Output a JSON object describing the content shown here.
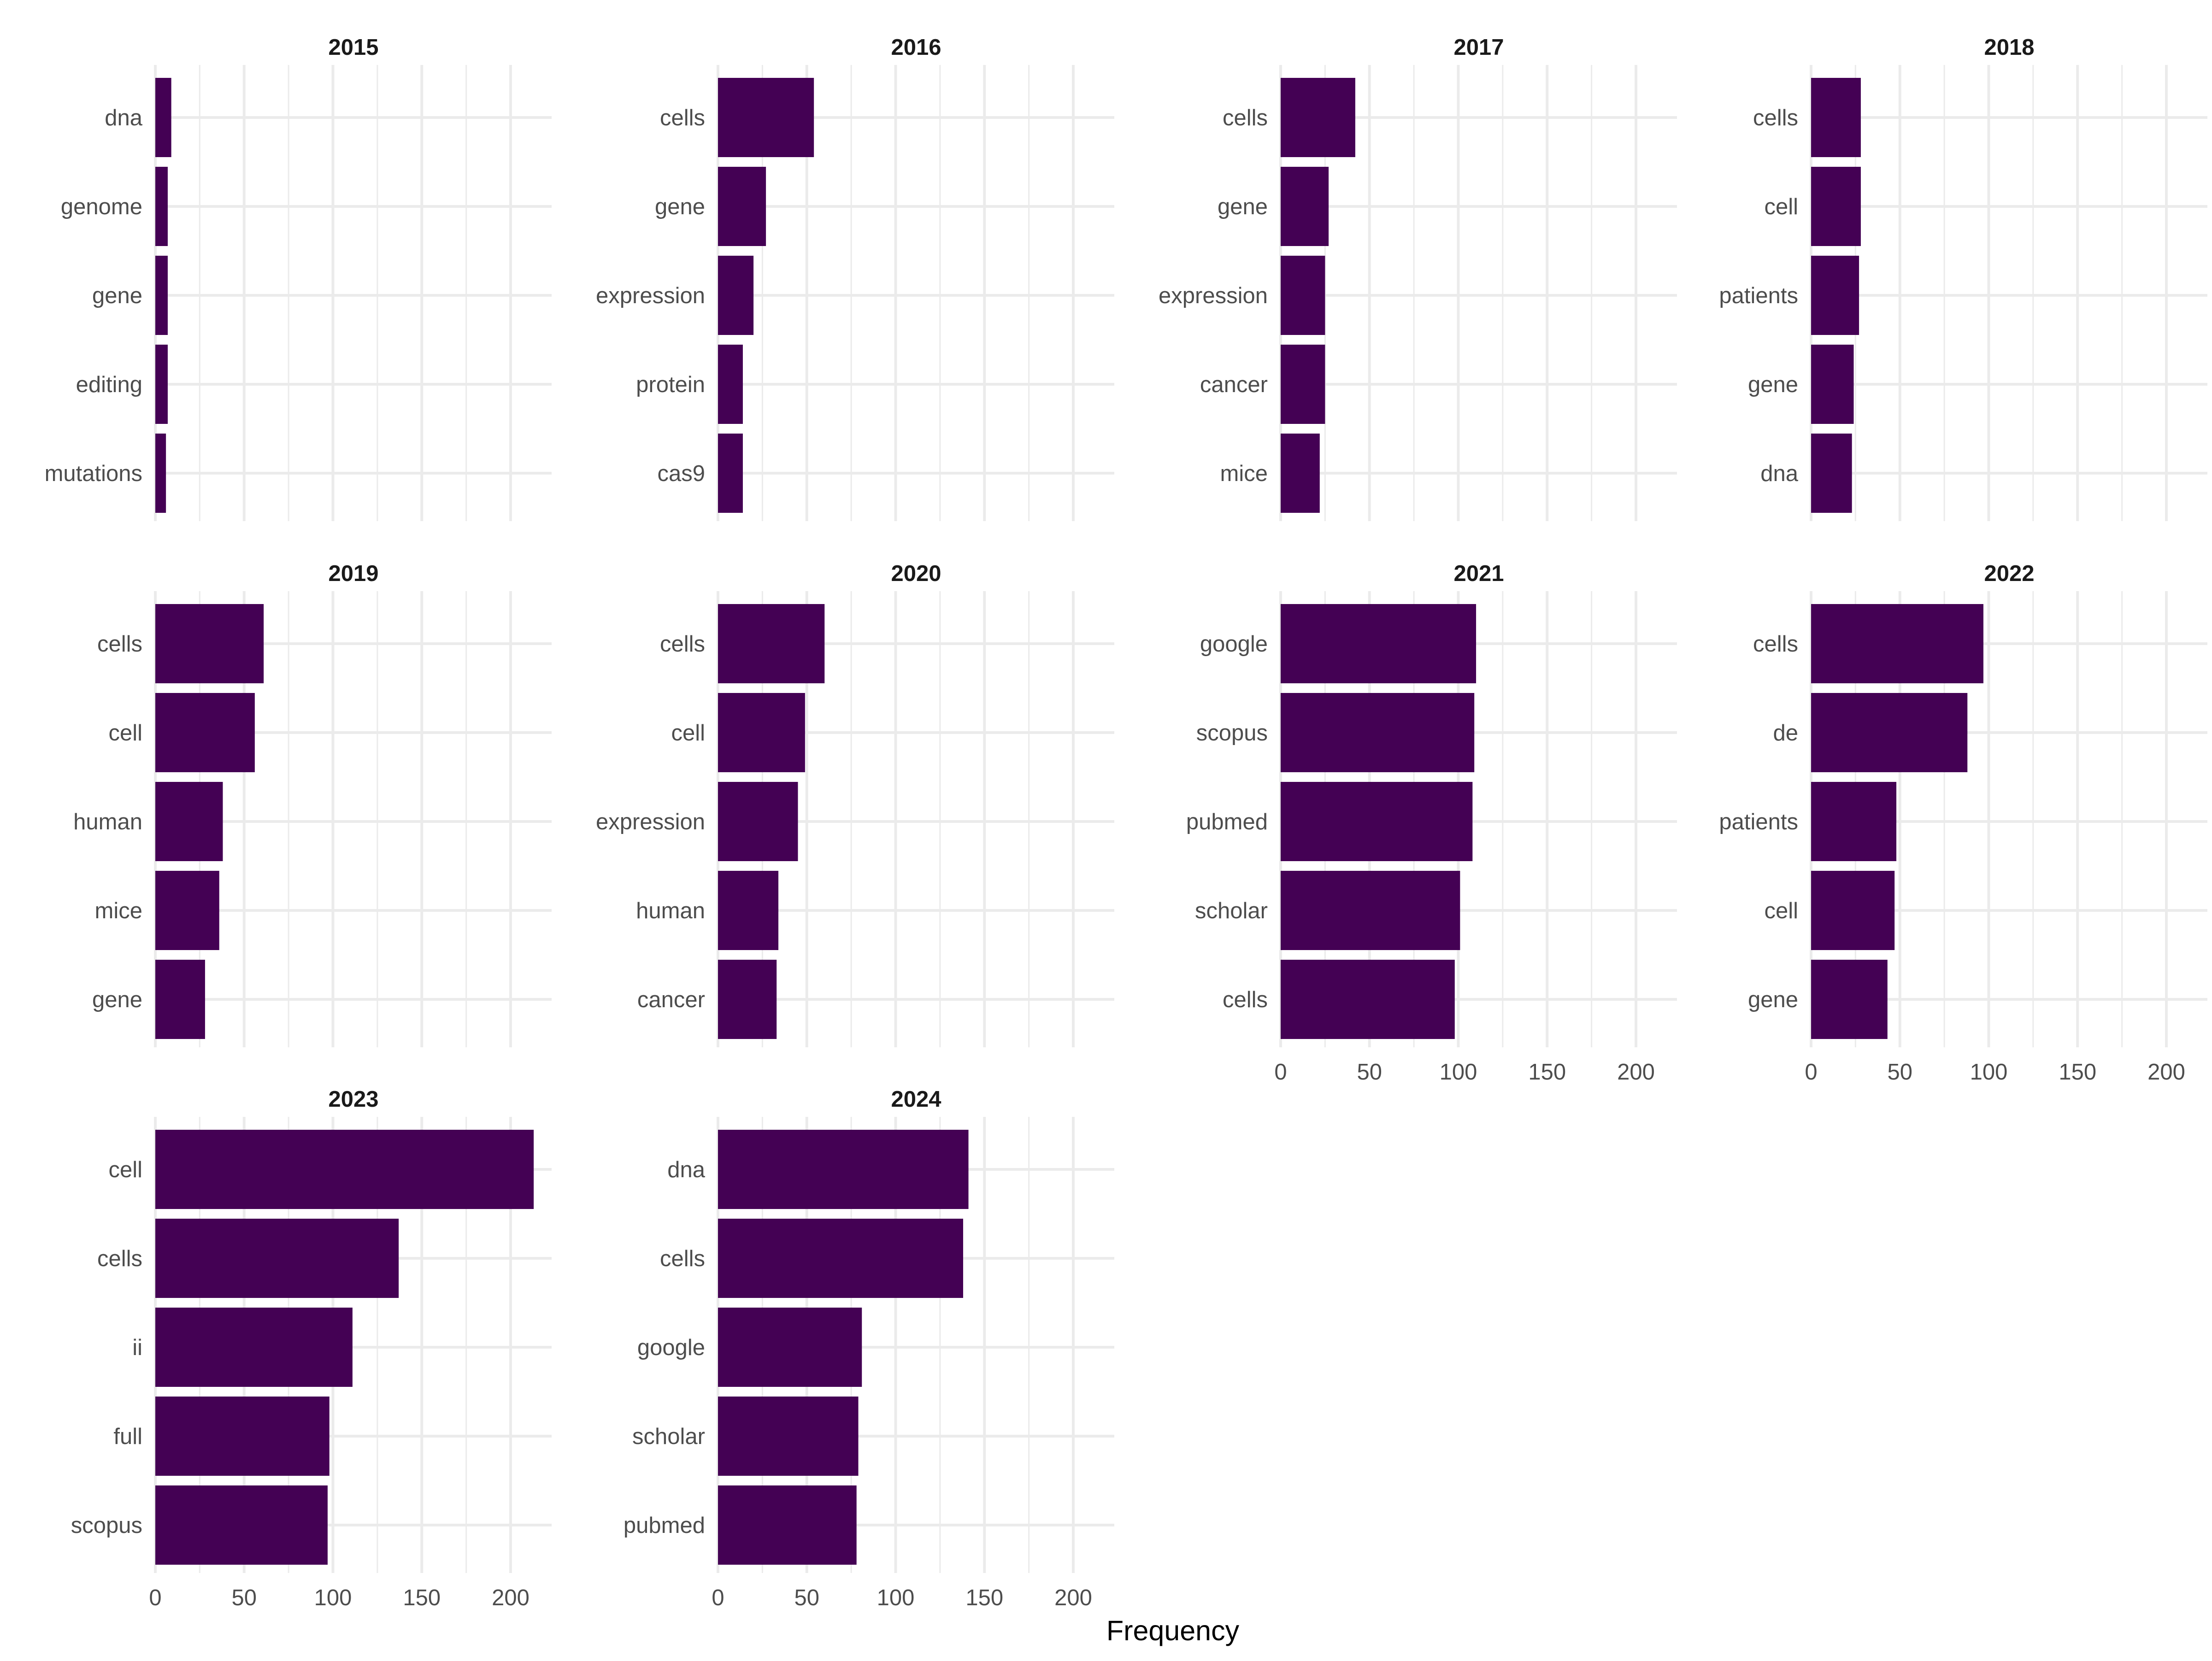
{
  "chart_data": {
    "type": "bar",
    "orientation": "horizontal",
    "layout": "facets",
    "facet_columns": 4,
    "xlabel": "Frequency",
    "ylabel": "",
    "xlim": [
      0,
      220
    ],
    "x_ticks": [
      0,
      50,
      100,
      150,
      200
    ],
    "grid": true,
    "bar_color": "#440154",
    "panels": [
      {
        "title": "2015",
        "categories": [
          "dna",
          "genome",
          "gene",
          "editing",
          "mutations"
        ],
        "values": [
          9,
          7,
          7,
          7,
          6
        ]
      },
      {
        "title": "2016",
        "categories": [
          "cells",
          "gene",
          "expression",
          "protein",
          "cas9"
        ],
        "values": [
          54,
          27,
          20,
          14,
          14
        ]
      },
      {
        "title": "2017",
        "categories": [
          "cells",
          "gene",
          "expression",
          "cancer",
          "mice"
        ],
        "values": [
          42,
          27,
          25,
          25,
          22
        ]
      },
      {
        "title": "2018",
        "categories": [
          "cells",
          "cell",
          "patients",
          "gene",
          "dna"
        ],
        "values": [
          28,
          28,
          27,
          24,
          23
        ]
      },
      {
        "title": "2019",
        "categories": [
          "cells",
          "cell",
          "human",
          "mice",
          "gene"
        ],
        "values": [
          61,
          56,
          38,
          36,
          28
        ]
      },
      {
        "title": "2020",
        "categories": [
          "cells",
          "cell",
          "expression",
          "human",
          "cancer"
        ],
        "values": [
          60,
          49,
          45,
          34,
          33
        ]
      },
      {
        "title": "2021",
        "categories": [
          "google",
          "scopus",
          "pubmed",
          "scholar",
          "cells"
        ],
        "values": [
          110,
          109,
          108,
          101,
          98
        ]
      },
      {
        "title": "2022",
        "categories": [
          "cells",
          "de",
          "patients",
          "cell",
          "gene"
        ],
        "values": [
          97,
          88,
          48,
          47,
          43
        ]
      },
      {
        "title": "2023",
        "categories": [
          "cell",
          "cells",
          "ii",
          "full",
          "scopus"
        ],
        "values": [
          213,
          137,
          111,
          98,
          97
        ]
      },
      {
        "title": "2024",
        "categories": [
          "dna",
          "cells",
          "google",
          "scholar",
          "pubmed"
        ],
        "values": [
          141,
          138,
          81,
          79,
          78
        ]
      }
    ]
  }
}
